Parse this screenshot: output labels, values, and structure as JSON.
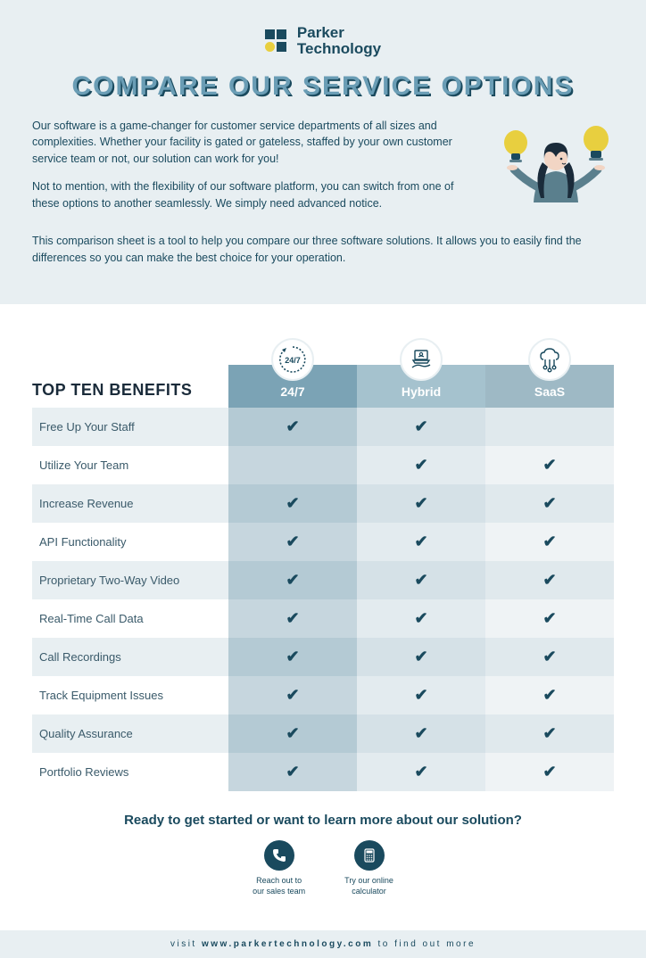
{
  "brand": {
    "name": "Parker\nTechnology"
  },
  "title": "COMPARE OUR SERVICE OPTIONS",
  "intro": {
    "p1": "Our software is a game-changer for customer service departments of all sizes and complexities. Whether your facility is gated or gateless, staffed by your own customer service team or not, our solution can work for you!",
    "p2": "Not to mention, with the flexibility of our software platform, you can switch from one of these options to another seamlessly. We simply need advanced notice.",
    "p3": "This comparison sheet is a tool to help you compare our three software solutions. It allows you to easily find the differences so you can make the best choice for your operation."
  },
  "table": {
    "heading": "TOP TEN BENEFITS",
    "columns": [
      {
        "label": "24/7",
        "icon": "clock-247"
      },
      {
        "label": "Hybrid",
        "icon": "laptop-hand"
      },
      {
        "label": "SaaS",
        "icon": "cloud-circuit"
      }
    ],
    "rows": [
      {
        "label": "Free Up Your Staff",
        "checks": [
          true,
          true,
          false
        ]
      },
      {
        "label": "Utilize Your Team",
        "checks": [
          false,
          true,
          true
        ]
      },
      {
        "label": "Increase Revenue",
        "checks": [
          true,
          true,
          true
        ]
      },
      {
        "label": "API Functionality",
        "checks": [
          true,
          true,
          true
        ]
      },
      {
        "label": "Proprietary Two-Way Video",
        "checks": [
          true,
          true,
          true
        ]
      },
      {
        "label": "Real-Time Call Data",
        "checks": [
          true,
          true,
          true
        ]
      },
      {
        "label": "Call Recordings",
        "checks": [
          true,
          true,
          true
        ]
      },
      {
        "label": "Track Equipment Issues",
        "checks": [
          true,
          true,
          true
        ]
      },
      {
        "label": "Quality Assurance",
        "checks": [
          true,
          true,
          true
        ]
      },
      {
        "label": "Portfolio Reviews",
        "checks": [
          true,
          true,
          true
        ]
      }
    ],
    "colors": {
      "head_c1": "#7ba3b5",
      "head_c2": "#a5c2ce",
      "head_c3": "#9eb9c5",
      "odd_label": "#e8eff2",
      "even_label": "#ffffff",
      "odd_c1": "#b4cad4",
      "even_c1": "#c6d6de",
      "odd_c2": "#d5e1e7",
      "even_c2": "#e3ebef",
      "odd_c3": "#e0e9ed",
      "even_c3": "#eff3f5",
      "check_color": "#1a4a5e"
    }
  },
  "cta": {
    "title": "Ready to get started or want to learn more about our solution?",
    "items": [
      {
        "icon": "phone",
        "label": "Reach out to\nour sales team"
      },
      {
        "icon": "calculator",
        "label": "Try our online\ncalculator"
      }
    ]
  },
  "footer": {
    "prefix": "visit ",
    "url": "www.parkertechnology.com",
    "suffix": " to find out more"
  },
  "palette": {
    "header_bg": "#e8eff2",
    "text_primary": "#1a4a5e",
    "title_fill": "#6a9db5",
    "title_shadow": "#1a4a5e",
    "bulb_yellow": "#e8cf3f",
    "person_blue": "#5a7f8d"
  }
}
